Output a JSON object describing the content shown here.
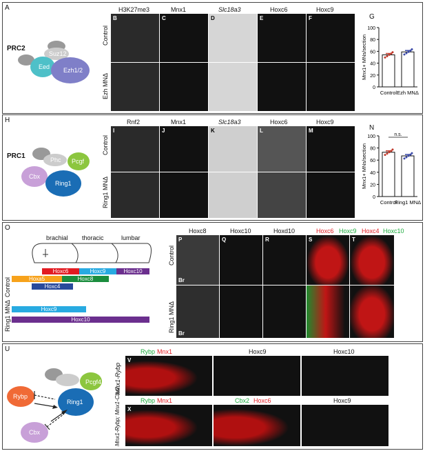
{
  "panelA": {
    "letter": "A",
    "complex": "PRC2",
    "subunits": {
      "suz12": "Suz12",
      "eed": "Eed",
      "ezh": "Ezh1/2"
    },
    "headers": {
      "B": "H3K27me3",
      "C": "Mnx1",
      "D": "Slc18a3",
      "E": "Hoxc6",
      "F": "Hoxc9"
    },
    "letters": [
      "B",
      "C",
      "D",
      "E",
      "F"
    ],
    "rows": [
      "Control",
      "Ezh MNΔ"
    ],
    "chart_letter": "G"
  },
  "panelH": {
    "letter": "H",
    "complex": "PRC1",
    "subunits": {
      "phc": "Phc",
      "pcgf": "Pcgf",
      "cbx": "Cbx",
      "ring1": "Ring1"
    },
    "headers": {
      "I": "Rnf2",
      "J": "Mnx1",
      "K": "Slc18a3",
      "L": "Hoxc6",
      "M": "Hoxc9"
    },
    "letters": [
      "I",
      "J",
      "K",
      "L",
      "M"
    ],
    "rows": [
      "Control",
      "Ring1 MNΔ"
    ],
    "chart_letter": "N",
    "ns": "n.s."
  },
  "panelO": {
    "letter": "O",
    "regions": [
      "brachial",
      "thoracic",
      "lumbar"
    ],
    "rows": [
      "Control",
      "Ring1 MNΔ"
    ],
    "control_bars": [
      "Hoxc6",
      "Hoxc9",
      "Hoxc10",
      "Hoxa5",
      "Hoxc8",
      "Hoxc4"
    ],
    "mut_bars": [
      "Hoxc9",
      "Hoxc10"
    ],
    "headers": {
      "P": "Hoxc8",
      "Q": "Hoxc10",
      "R": "Hoxd10"
    },
    "S": {
      "a": "Hoxc6",
      "b": "Hoxc9"
    },
    "T": {
      "a": "Hoxc4",
      "b": "Hoxc10"
    },
    "letters": [
      "P",
      "Q",
      "R",
      "S",
      "T"
    ],
    "br": "Br"
  },
  "panelU": {
    "letter": "U",
    "subunits": {
      "rybp": "Rybp",
      "pcgf4": "Pcgf4",
      "ring1": "Ring1",
      "cbx": "Cbx"
    },
    "row1_label": "Mnx1-Rybp",
    "row2_label": "Mnx1-Rybp; Mnx1-Cbx2",
    "V": {
      "a": "Rybp",
      "b": "Mnx1",
      "c": "Hoxc9",
      "d": "Hoxc10"
    },
    "X": {
      "a": "Rybp",
      "b": "Mnx1",
      "c": "Cbx2",
      "d": "Hoxc6",
      "e": "Hoxc9"
    },
    "letters": [
      "V",
      "X"
    ]
  },
  "chart_data": [
    {
      "type": "bar",
      "categories": [
        "Control",
        "Ezh MNΔ"
      ],
      "values": [
        54,
        59
      ],
      "ylabel": "Mnx1+ MNs/section",
      "ylim": [
        0,
        100
      ],
      "yticks": [
        0,
        20,
        40,
        60,
        80,
        100
      ]
    },
    {
      "type": "bar",
      "categories": [
        "Control",
        "Ring1 MNΔ"
      ],
      "values": [
        73,
        67
      ],
      "ylabel": "Mnx1+ MNs/section",
      "ylim": [
        0,
        100
      ],
      "yticks": [
        0,
        20,
        40,
        60,
        80,
        100
      ],
      "annotation": "n.s."
    }
  ],
  "colors": {
    "eed": "#4ec0c8",
    "ezh": "#7f7fc8",
    "grey": "#999",
    "cbx": "#c8a0d8",
    "ring1": "#1a6db5",
    "pcgf": "#8cc63f",
    "rybp": "#f06a36",
    "red": "#e8261f",
    "green": "#1aaa3c",
    "hoxc6": "#e21b22",
    "hoxc9": "#28aae1",
    "hoxc10": "#6b2f8e",
    "hoxa5": "#f7a21b",
    "hoxc8": "#1b8d3e",
    "hoxc4": "#294a9b"
  }
}
